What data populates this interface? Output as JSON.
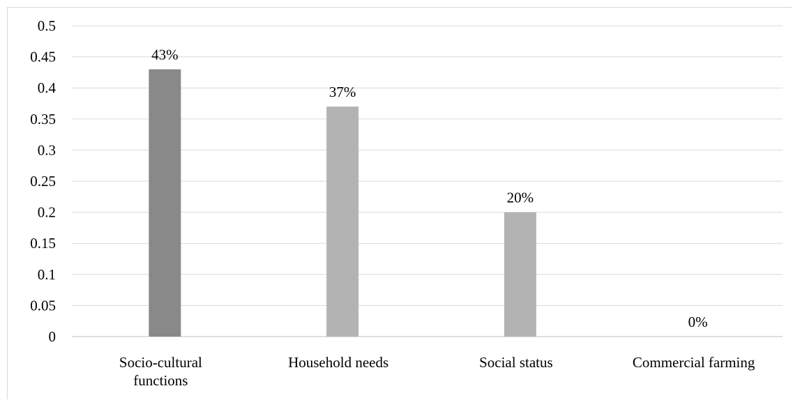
{
  "chart_data": {
    "type": "bar",
    "categories": [
      "Socio-cultural functions",
      "Household needs",
      "Social status",
      "Commercial farming"
    ],
    "category_lines": [
      [
        "Socio-cultural",
        "functions"
      ],
      [
        "Household needs"
      ],
      [
        "Social status"
      ],
      [
        "Commercial farming"
      ]
    ],
    "values": [
      0.43,
      0.37,
      0.2,
      0
    ],
    "data_labels": [
      "43%",
      "37%",
      "20%",
      "0%"
    ],
    "bar_colors": [
      "#898989",
      "#b3b3b3",
      "#b3b3b3",
      "#b3b3b3"
    ],
    "ylim": [
      0,
      0.5
    ],
    "y_ticks": [
      "0",
      "0.05",
      "0.1",
      "0.15",
      "0.2",
      "0.25",
      "0.3",
      "0.35",
      "0.4",
      "0.45",
      "0.5"
    ],
    "y_tick_values": [
      0,
      0.05,
      0.1,
      0.15,
      0.2,
      0.25,
      0.3,
      0.35,
      0.4,
      0.45,
      0.5
    ],
    "grid": true,
    "gridline_color": "#d9d9d9",
    "axis_color": "#bfbfbf",
    "legend": "none",
    "title": "",
    "xlabel": "",
    "ylabel": ""
  }
}
